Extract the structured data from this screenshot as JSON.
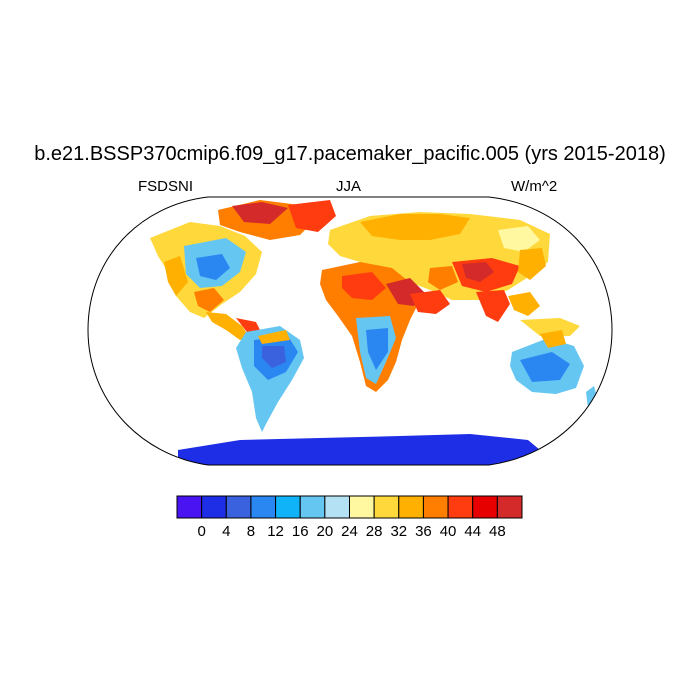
{
  "title": "b.e21.BSSP370cmip6.f09_g17.pacemaker_pacific.005 (yrs 2015-2018)",
  "left_label": "FSDSNI",
  "center_label": "JJA",
  "right_label": "W/m^2",
  "colorbar": {
    "colors": [
      "#4a14f2",
      "#1e2ee6",
      "#3a62de",
      "#2a86f0",
      "#10b2f8",
      "#66c6f2",
      "#b4e2f4",
      "#fff8a0",
      "#ffd83c",
      "#ffb000",
      "#ff7e00",
      "#ff3c10",
      "#e60000",
      "#d42a2a"
    ],
    "labels": [
      "0",
      "4",
      "8",
      "12",
      "16",
      "20",
      "24",
      "28",
      "32",
      "36",
      "40",
      "44",
      "48"
    ]
  }
}
